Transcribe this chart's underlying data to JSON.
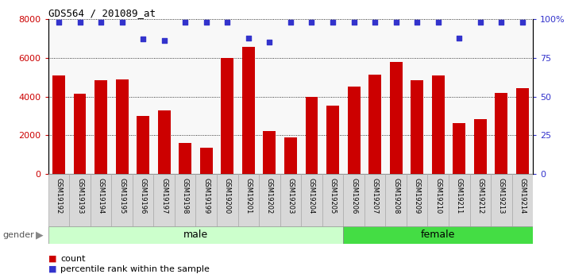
{
  "title": "GDS564 / 201089_at",
  "categories": [
    "GSM19192",
    "GSM19193",
    "GSM19194",
    "GSM19195",
    "GSM19196",
    "GSM19197",
    "GSM19198",
    "GSM19199",
    "GSM19200",
    "GSM19201",
    "GSM19202",
    "GSM19203",
    "GSM19204",
    "GSM19205",
    "GSM19206",
    "GSM19207",
    "GSM19208",
    "GSM19209",
    "GSM19210",
    "GSM19211",
    "GSM19212",
    "GSM19213",
    "GSM19214"
  ],
  "counts": [
    5100,
    4150,
    4850,
    4900,
    3000,
    3300,
    1600,
    1350,
    6000,
    6550,
    2200,
    1900,
    4000,
    3550,
    4500,
    5150,
    5800,
    4850,
    5100,
    2650,
    2850,
    4200,
    4450
  ],
  "percentile_ranks": [
    98,
    98,
    98,
    98,
    87,
    86,
    98,
    98,
    98,
    88,
    85,
    98,
    98,
    98,
    98,
    98,
    98,
    98,
    98,
    88,
    98,
    98,
    98
  ],
  "bar_color": "#cc0000",
  "dot_color": "#3333cc",
  "ylim_left": [
    0,
    8000
  ],
  "ylim_right": [
    0,
    100
  ],
  "yticks_left": [
    0,
    2000,
    4000,
    6000,
    8000
  ],
  "yticks_right": [
    0,
    25,
    50,
    75,
    100
  ],
  "ytick_labels_right": [
    "0",
    "25",
    "50",
    "75",
    "100%"
  ],
  "male_samples": 14,
  "female_samples": 9,
  "male_label": "male",
  "female_label": "female",
  "gender_label": "gender",
  "legend_count_label": "count",
  "legend_pct_label": "percentile rank within the sample",
  "male_color": "#ccffcc",
  "female_color": "#44dd44",
  "xticklabel_bg": "#d8d8d8",
  "plot_bg": "#f8f8f8"
}
